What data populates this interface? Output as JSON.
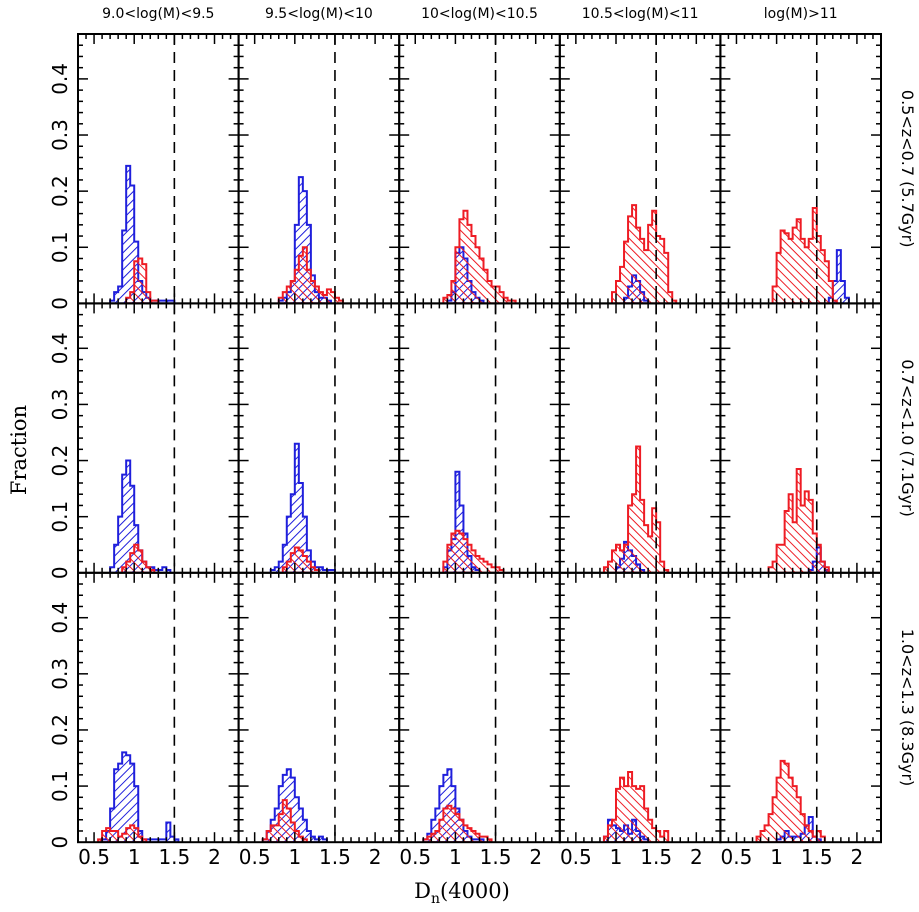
{
  "chart_data": {
    "type": "bar",
    "title": "",
    "xlabel": "D",
    "xlabel_sub": "n",
    "xlabel_suffix": "(4000)",
    "ylabel": "Fraction",
    "xlim": [
      0.3,
      2.3
    ],
    "ylim": [
      0,
      0.48
    ],
    "x_ticks": [
      0.5,
      1,
      1.5,
      2
    ],
    "x_tick_labels": [
      "0.5",
      "1",
      "1.5",
      "2"
    ],
    "y_ticks": [
      0,
      0.1,
      0.2,
      0.3,
      0.4
    ],
    "y_tick_labels": [
      "0",
      "0.1",
      "0.2",
      "0.3",
      "0.4"
    ],
    "reference_line_x": 1.5,
    "bin_width": 0.05,
    "columns": [
      "9.0<log(M)<9.5",
      "9.5<log(M)<10",
      "10<log(M)<10.5",
      "10.5<log(M)<11",
      "log(M)>11"
    ],
    "rows": [
      "0.5<z<0.7 (5.7Gyr)",
      "0.7<z<1.0 (7.1Gyr)",
      "1.0<z<1.3 (8.3Gyr)"
    ],
    "colors": {
      "blue": "#1f1fdc",
      "red": "#ee1c24",
      "axes": "#000000"
    },
    "panels": [
      {
        "row": 0,
        "col": 0,
        "blue": {
          "start": 0.7,
          "values": [
            0.005,
            0.02,
            0.03,
            0.13,
            0.245,
            0.21,
            0.11,
            0.04,
            0.02,
            0.01,
            0.005,
            0.005,
            0.005,
            0.005,
            0.005,
            0.005
          ]
        },
        "red": {
          "start": 0.9,
          "values": [
            0.01,
            0.02,
            0.075,
            0.08,
            0.07,
            0.02,
            0.005,
            0.005
          ]
        }
      },
      {
        "row": 0,
        "col": 1,
        "blue": {
          "start": 0.8,
          "values": [
            0.005,
            0.01,
            0.02,
            0.04,
            0.14,
            0.225,
            0.2,
            0.14,
            0.05,
            0.02,
            0.01,
            0.01,
            0.005
          ]
        },
        "red": {
          "start": 0.8,
          "values": [
            0.01,
            0.02,
            0.03,
            0.04,
            0.06,
            0.085,
            0.1,
            0.06,
            0.04,
            0.03,
            0.02,
            0.015,
            0.025,
            0.02,
            0.01,
            0.005
          ]
        }
      },
      {
        "row": 0,
        "col": 2,
        "blue": {
          "start": 0.9,
          "values": [
            0.005,
            0.02,
            0.09,
            0.1,
            0.08,
            0.04,
            0.02,
            0.01,
            0.005
          ]
        },
        "red": {
          "start": 0.85,
          "values": [
            0.01,
            0.015,
            0.04,
            0.1,
            0.15,
            0.165,
            0.14,
            0.12,
            0.1,
            0.08,
            0.06,
            0.04,
            0.03,
            0.03,
            0.02,
            0.01,
            0.005,
            0.005
          ]
        }
      },
      {
        "row": 0,
        "col": 3,
        "blue": {
          "start": 1.1,
          "values": [
            0.01,
            0.03,
            0.05,
            0.04,
            0.02,
            0.005
          ]
        },
        "red": {
          "start": 0.95,
          "values": [
            0.02,
            0.04,
            0.065,
            0.11,
            0.155,
            0.175,
            0.135,
            0.115,
            0.095,
            0.14,
            0.165,
            0.12,
            0.115,
            0.09,
            0.02,
            0.005
          ]
        }
      },
      {
        "row": 0,
        "col": 4,
        "blue": {
          "start": 1.65,
          "values": [
            0.01,
            0.04,
            0.095,
            0.04,
            0.01
          ]
        },
        "red": {
          "start": 0.95,
          "values": [
            0.03,
            0.09,
            0.13,
            0.125,
            0.115,
            0.135,
            0.15,
            0.115,
            0.1,
            0.115,
            0.17,
            0.12,
            0.095,
            0.075,
            0.04,
            0.005
          ]
        }
      },
      {
        "row": 1,
        "col": 0,
        "blue": {
          "start": 0.7,
          "values": [
            0.01,
            0.05,
            0.1,
            0.175,
            0.2,
            0.155,
            0.085,
            0.04,
            0.02,
            0.01,
            0.01,
            0.005,
            0.005,
            0.01,
            0.005
          ]
        },
        "red": {
          "start": 0.85,
          "values": [
            0.01,
            0.02,
            0.035,
            0.05,
            0.04,
            0.02,
            0.01,
            0.005
          ]
        }
      },
      {
        "row": 1,
        "col": 1,
        "blue": {
          "start": 0.7,
          "values": [
            0.005,
            0.01,
            0.02,
            0.05,
            0.1,
            0.14,
            0.23,
            0.16,
            0.1,
            0.04,
            0.02,
            0.01,
            0.01,
            0.005,
            0.005,
            0.005
          ]
        },
        "red": {
          "start": 0.85,
          "values": [
            0.01,
            0.02,
            0.035,
            0.045,
            0.04,
            0.03,
            0.02,
            0.01,
            0.005
          ]
        }
      },
      {
        "row": 1,
        "col": 2,
        "blue": {
          "start": 0.85,
          "values": [
            0.01,
            0.04,
            0.06,
            0.18,
            0.12,
            0.07,
            0.03,
            0.01,
            0.005
          ]
        },
        "red": {
          "start": 0.85,
          "values": [
            0.02,
            0.05,
            0.07,
            0.075,
            0.07,
            0.06,
            0.05,
            0.04,
            0.03,
            0.025,
            0.02,
            0.015,
            0.01,
            0.01,
            0.005
          ]
        }
      },
      {
        "row": 1,
        "col": 3,
        "blue": {
          "start": 1.0,
          "values": [
            0.01,
            0.025,
            0.055,
            0.04,
            0.03,
            0.015,
            0.005
          ]
        },
        "red": {
          "start": 0.85,
          "values": [
            0.01,
            0.02,
            0.04,
            0.05,
            0.04,
            0.05,
            0.12,
            0.14,
            0.225,
            0.13,
            0.085,
            0.065,
            0.115,
            0.09,
            0.02,
            0.005
          ]
        }
      },
      {
        "row": 1,
        "col": 4,
        "blue": {
          "start": 1.4,
          "values": [
            0.005,
            0.02,
            0.045,
            0.02,
            0.005
          ]
        },
        "red": {
          "start": 0.9,
          "values": [
            0.01,
            0.02,
            0.05,
            0.05,
            0.11,
            0.14,
            0.09,
            0.185,
            0.12,
            0.145,
            0.13,
            0.07,
            0.05,
            0.02,
            0.01
          ]
        }
      },
      {
        "row": 2,
        "col": 0,
        "blue": {
          "start": 0.6,
          "values": [
            0.005,
            0.02,
            0.06,
            0.13,
            0.14,
            0.16,
            0.155,
            0.14,
            0.1,
            0.02,
            0.005,
            0.005,
            0.005,
            0.005,
            0.005,
            0.005,
            0.035,
            0.01,
            0.005
          ]
        },
        "red": {
          "start": 0.55,
          "values": [
            0.005,
            0.02,
            0.025,
            0.02,
            0.02,
            0.01,
            0.015,
            0.025,
            0.03,
            0.025,
            0.01,
            0.005
          ]
        }
      },
      {
        "row": 2,
        "col": 1,
        "blue": {
          "start": 0.6,
          "values": [
            0.005,
            0.02,
            0.04,
            0.06,
            0.1,
            0.12,
            0.13,
            0.115,
            0.08,
            0.06,
            0.04,
            0.02,
            0.01,
            0.005,
            0.01,
            0.005
          ]
        },
        "red": {
          "start": 0.6,
          "values": [
            0.005,
            0.02,
            0.03,
            0.03,
            0.05,
            0.075,
            0.06,
            0.035,
            0.02,
            0.01,
            0.005
          ]
        }
      },
      {
        "row": 2,
        "col": 2,
        "blue": {
          "start": 0.6,
          "values": [
            0.005,
            0.015,
            0.04,
            0.06,
            0.1,
            0.12,
            0.13,
            0.1,
            0.06,
            0.04,
            0.02,
            0.01,
            0.005,
            0.005,
            0.005
          ]
        },
        "red": {
          "start": 0.6,
          "values": [
            0.005,
            0.01,
            0.015,
            0.02,
            0.04,
            0.06,
            0.065,
            0.06,
            0.05,
            0.04,
            0.03,
            0.025,
            0.02,
            0.015,
            0.01,
            0.01,
            0.005
          ]
        }
      },
      {
        "row": 2,
        "col": 3,
        "blue": {
          "start": 0.85,
          "values": [
            0.01,
            0.04,
            0.03,
            0.025,
            0.02,
            0.03,
            0.015,
            0.04,
            0.02,
            0.01,
            0.005
          ]
        },
        "red": {
          "start": 0.85,
          "values": [
            0.01,
            0.03,
            0.04,
            0.095,
            0.115,
            0.1,
            0.125,
            0.1,
            0.095,
            0.1,
            0.06,
            0.04,
            0.025,
            0.02,
            0.01,
            0.02
          ]
        }
      },
      {
        "row": 2,
        "col": 4,
        "blue": {
          "start": 1.0,
          "values": [
            0.005,
            0.01,
            0.02,
            0.01,
            0.01,
            0.01,
            0.015,
            0.03,
            0.045,
            0.01,
            0.005
          ]
        },
        "red": {
          "start": 0.75,
          "values": [
            0.01,
            0.02,
            0.03,
            0.05,
            0.08,
            0.115,
            0.145,
            0.14,
            0.115,
            0.1,
            0.08,
            0.05,
            0.03,
            0.02,
            0.01,
            0.02,
            0.01
          ]
        }
      }
    ]
  }
}
